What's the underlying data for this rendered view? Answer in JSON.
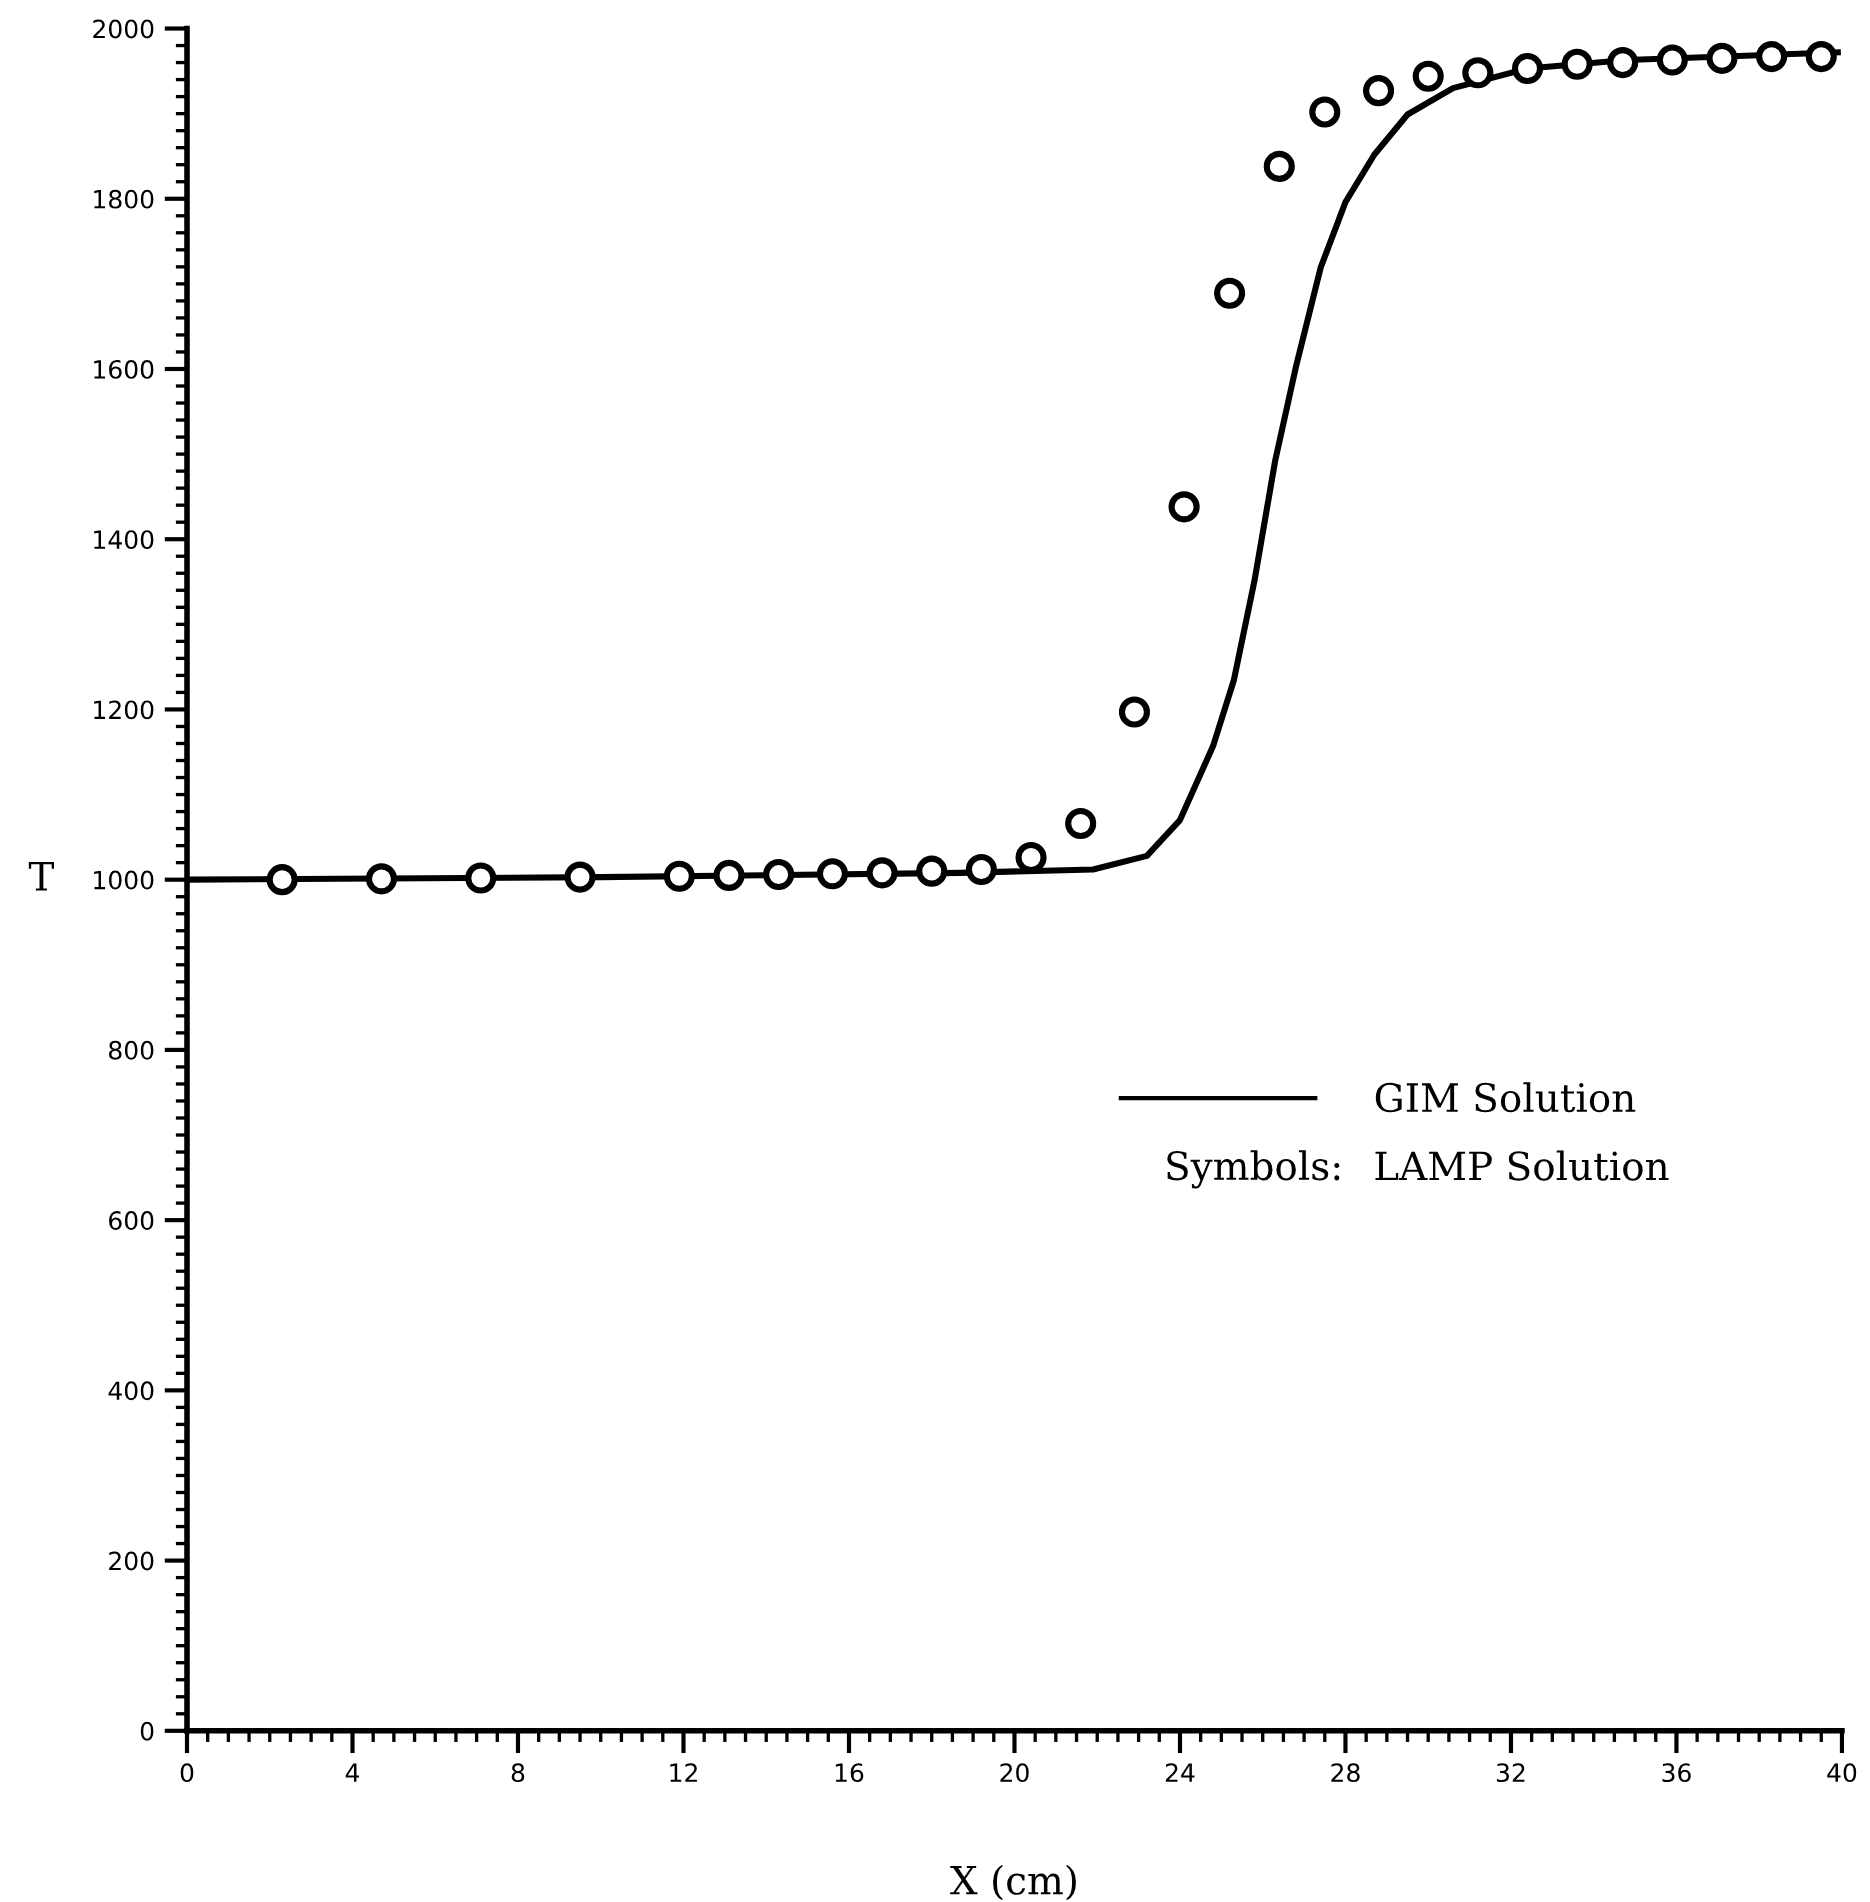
{
  "chart_data": {
    "type": "line",
    "xlabel": "X (cm)",
    "ylabel": "T",
    "xlim": [
      0,
      40
    ],
    "xticks": [
      0,
      4,
      8,
      12,
      16,
      20,
      24,
      28,
      32,
      36,
      40
    ],
    "ylim": [
      0,
      2000
    ],
    "yticks": [
      0,
      200,
      400,
      600,
      800,
      1000,
      1200,
      1400,
      1600,
      1800,
      2000
    ],
    "grid": false,
    "legend": "right",
    "annotations": [
      "Symbols:",
      "LAMP Solution"
    ],
    "series": [
      {
        "name": "GIM Solution",
        "type": "line",
        "color": "#000000",
        "marker": "none",
        "line_style": "solid",
        "x": [
          0,
          10,
          18.7,
          21.9,
          23.2,
          24.0,
          24.8,
          25.3,
          25.8,
          26.3,
          26.8,
          27.4,
          28.0,
          28.7,
          29.5,
          30.6,
          32.4,
          34.8,
          39.9
        ],
        "values": [
          1000,
          1003,
          1008,
          1012,
          1028,
          1070,
          1157,
          1234,
          1351,
          1492,
          1602,
          1719,
          1796,
          1852,
          1899,
          1930,
          1953,
          1963,
          1972
        ]
      },
      {
        "type": "scatter",
        "color": "#000000",
        "marker": "circle",
        "x": [
          2.3,
          4.7,
          7.1,
          9.5,
          11.9,
          13.1,
          14.3,
          15.6,
          16.8,
          18.0,
          19.2,
          20.4,
          21.6,
          22.9,
          24.1,
          25.2,
          26.4,
          27.5,
          28.8,
          30.0,
          31.2,
          32.4,
          33.6,
          34.7,
          35.9,
          37.1,
          38.3,
          39.5
        ],
        "values": [
          1000,
          1001,
          1002,
          1003,
          1004,
          1005,
          1006,
          1007,
          1008,
          1010,
          1012,
          1026,
          1066,
          1197,
          1438,
          1689,
          1838,
          1902,
          1927,
          1944,
          1948,
          1953,
          1958,
          1960,
          1963,
          1965,
          1967,
          1967
        ]
      }
    ]
  }
}
